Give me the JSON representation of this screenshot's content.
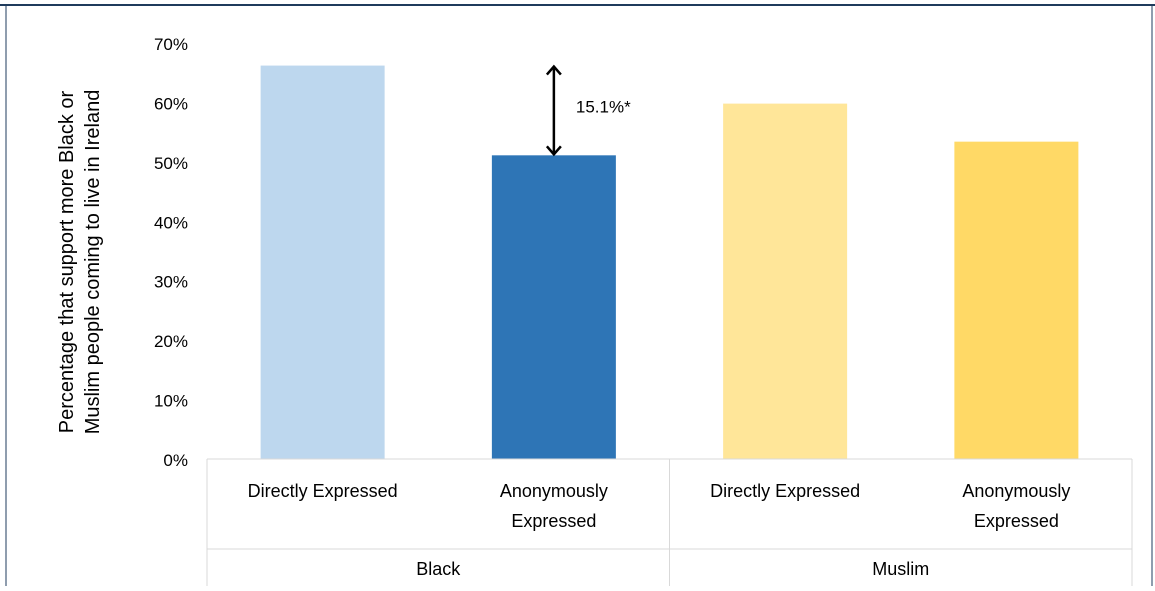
{
  "chart_data": {
    "type": "bar",
    "title": "",
    "ylabel_lines": [
      "Percentage that support more Black or",
      "Muslim people coming to live in Ireland"
    ],
    "ylim": [
      0,
      70
    ],
    "yticks": [
      0,
      10,
      20,
      30,
      40,
      50,
      60,
      70
    ],
    "ytick_labels": [
      "0%",
      "10%",
      "20%",
      "30%",
      "40%",
      "50%",
      "60%",
      "70%"
    ],
    "grid": false,
    "legend": "none",
    "groups": [
      {
        "label": "Black",
        "categories": [
          "Directly Expressed",
          "Anonymously Expressed"
        ]
      },
      {
        "label": "Muslim",
        "categories": [
          "Directly Expressed",
          "Anonymously Expressed"
        ]
      }
    ],
    "category_label_lines": [
      [
        "Directly Expressed"
      ],
      [
        "Anonymously",
        "Expressed"
      ],
      [
        "Directly Expressed"
      ],
      [
        "Anonymously",
        "Expressed"
      ]
    ],
    "values": [
      66.2,
      51.1,
      59.8,
      53.4
    ],
    "colors": [
      "#bdd7ee",
      "#2e75b6",
      "#ffe699",
      "#ffd966"
    ],
    "annotation": {
      "text": "15.1%*",
      "from_value": 66.2,
      "to_value": 51.1,
      "bar_index": 1
    }
  },
  "colors": {
    "frame_border": "#1f3b5c",
    "axis": "#d9d9d9",
    "arrow": "#000000"
  }
}
